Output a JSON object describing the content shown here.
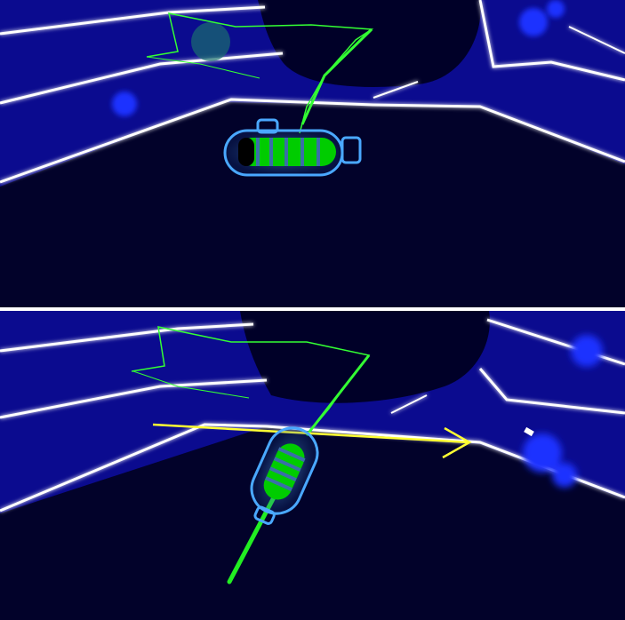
{
  "scene": {
    "colors": {
      "background_far": "#0a0a8c",
      "floor": "#02022a",
      "rail_glow": "#ffffff",
      "rail_halo": "#6a7bff",
      "shadow": "#000028",
      "wire": "#33ff33",
      "capsule_shell": "#4aa8ff",
      "capsule_core": "#00cc00",
      "arrow": "#ffff33",
      "particles": "#1a33ff"
    },
    "frames": [
      {
        "name": "top-frame",
        "description_label": ""
      },
      {
        "name": "bottom-frame",
        "description_label": ""
      }
    ]
  }
}
